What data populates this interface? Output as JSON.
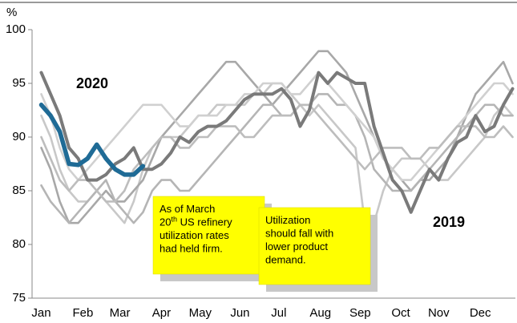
{
  "chart_data": {
    "type": "line",
    "ylabel": "%",
    "ylim": [
      75,
      100
    ],
    "yticks": [
      75,
      80,
      85,
      90,
      95,
      100
    ],
    "xlim": [
      0,
      52.3
    ],
    "xticks": [
      {
        "value": 1.0,
        "label": "Jan"
      },
      {
        "value": 5.5,
        "label": "Feb"
      },
      {
        "value": 9.5,
        "label": "Mar"
      },
      {
        "value": 14.0,
        "label": "Apr"
      },
      {
        "value": 18.2,
        "label": "May"
      },
      {
        "value": 22.5,
        "label": "Jun"
      },
      {
        "value": 26.7,
        "label": "Jul"
      },
      {
        "value": 31.2,
        "label": "Aug"
      },
      {
        "value": 35.5,
        "label": "Sep"
      },
      {
        "value": 39.9,
        "label": "Oct"
      },
      {
        "value": 44.0,
        "label": "Nov"
      },
      {
        "value": 48.5,
        "label": "Dec"
      }
    ],
    "x": [
      1,
      2,
      3,
      4,
      5,
      6,
      7,
      8,
      9,
      10,
      11,
      12,
      13,
      14,
      15,
      16,
      17,
      18,
      19,
      20,
      21,
      22,
      23,
      24,
      25,
      26,
      27,
      28,
      29,
      30,
      31,
      32,
      33,
      34,
      35,
      36,
      37,
      38,
      39,
      40,
      41,
      42,
      43,
      44,
      45,
      46,
      47,
      48,
      49,
      50,
      51,
      52
    ],
    "series": [
      {
        "color": "#c8c8c8",
        "values": [
          92,
          90,
          87,
          85,
          84,
          84,
          85,
          84,
          83,
          82,
          84,
          87,
          89,
          90,
          90,
          90,
          91,
          92,
          92,
          93,
          93,
          93,
          93,
          94,
          94,
          95,
          95,
          94,
          93,
          92,
          93,
          92,
          91,
          90,
          89,
          82,
          82,
          85,
          87,
          88,
          88,
          88,
          87,
          86,
          86,
          87,
          88,
          89,
          90,
          92,
          93,
          92
        ]
      },
      {
        "color": "#a8a8a8",
        "values": [
          89,
          87,
          84,
          82,
          82,
          83,
          84,
          85,
          84,
          84,
          85,
          86,
          88,
          90,
          91,
          92,
          93,
          94,
          95,
          96,
          97,
          97,
          96,
          95,
          94,
          93,
          94,
          95,
          96,
          97,
          98,
          98,
          97,
          96,
          94,
          92,
          90,
          88,
          87,
          86,
          85,
          86,
          86,
          87,
          88,
          90,
          92,
          94,
          95,
          96,
          97,
          95
        ]
      },
      {
        "color": "#b5b5b5",
        "values": [
          85.5,
          84,
          83,
          82,
          83,
          84,
          85,
          86,
          84,
          83,
          82,
          83,
          85,
          86,
          86,
          85,
          85,
          86,
          87,
          88,
          89,
          90,
          91,
          92,
          93,
          93,
          92,
          92,
          93,
          93,
          94,
          94,
          93,
          93,
          92,
          90,
          87,
          86,
          85,
          85,
          85,
          86,
          87,
          88,
          89,
          90,
          91,
          92,
          93,
          93,
          92,
          92
        ]
      },
      {
        "color": "#d0d0d0",
        "values": [
          94,
          92,
          89,
          87,
          86,
          87,
          88,
          89,
          90,
          91,
          92,
          93,
          93,
          93,
          92,
          91,
          91,
          92,
          92,
          92,
          93,
          93,
          94,
          94,
          95,
          95,
          95,
          94,
          94,
          95,
          96,
          95,
          94,
          93,
          92,
          91,
          90,
          88,
          87,
          86,
          86,
          87,
          88,
          89,
          90,
          91,
          92,
          93,
          94,
          95,
          95,
          94
        ]
      },
      {
        "color": "#bdbdbd",
        "values": [
          90,
          88,
          86,
          85,
          86,
          86,
          85,
          84,
          84,
          85,
          87,
          88,
          89,
          90,
          90,
          89,
          89,
          90,
          90,
          91,
          91,
          91,
          90,
          90,
          91,
          92,
          92,
          92,
          93,
          93,
          92,
          91,
          90,
          89,
          88,
          87,
          88,
          89,
          89,
          89,
          88,
          88,
          89,
          89,
          90,
          91,
          91,
          91,
          90,
          90,
          91,
          90
        ]
      },
      {
        "name": "2019",
        "color": "#7a7a7a",
        "values": [
          96,
          94,
          92,
          89,
          88,
          86,
          86,
          86.5,
          87.5,
          88,
          89,
          87,
          87,
          87.5,
          88.5,
          90,
          89.5,
          90.5,
          91,
          91,
          91.5,
          92.5,
          93.5,
          94,
          94,
          94,
          94.5,
          93.5,
          91,
          92.5,
          96,
          95,
          96,
          95.5,
          95,
          95,
          91,
          88.5,
          86,
          85,
          83,
          85,
          87,
          86,
          88,
          89.5,
          90,
          92,
          90.5,
          91,
          93,
          94.5
        ]
      },
      {
        "name": "2020",
        "color": "#1f6b96",
        "values": [
          93,
          92,
          90.5,
          87.5,
          87.4,
          88,
          89.3,
          88,
          87,
          86.5,
          86.5,
          87.3,
          null,
          null,
          null,
          null,
          null,
          null,
          null,
          null,
          null,
          null,
          null,
          null,
          null,
          null,
          null,
          null,
          null,
          null,
          null,
          null,
          null,
          null,
          null,
          null,
          null,
          null,
          null,
          null,
          null,
          null,
          null,
          null,
          null,
          null,
          null,
          null,
          null,
          null,
          null,
          null
        ]
      }
    ],
    "annotations": [
      {
        "lines": [
          "As of March",
          {
            "text": "20",
            "sup": "th",
            "rest": " US refinery"
          },
          "utilization rates",
          "had held firm."
        ]
      },
      {
        "lines": [
          "Utilization",
          "should fall with",
          "lower product",
          "demand."
        ]
      }
    ]
  }
}
